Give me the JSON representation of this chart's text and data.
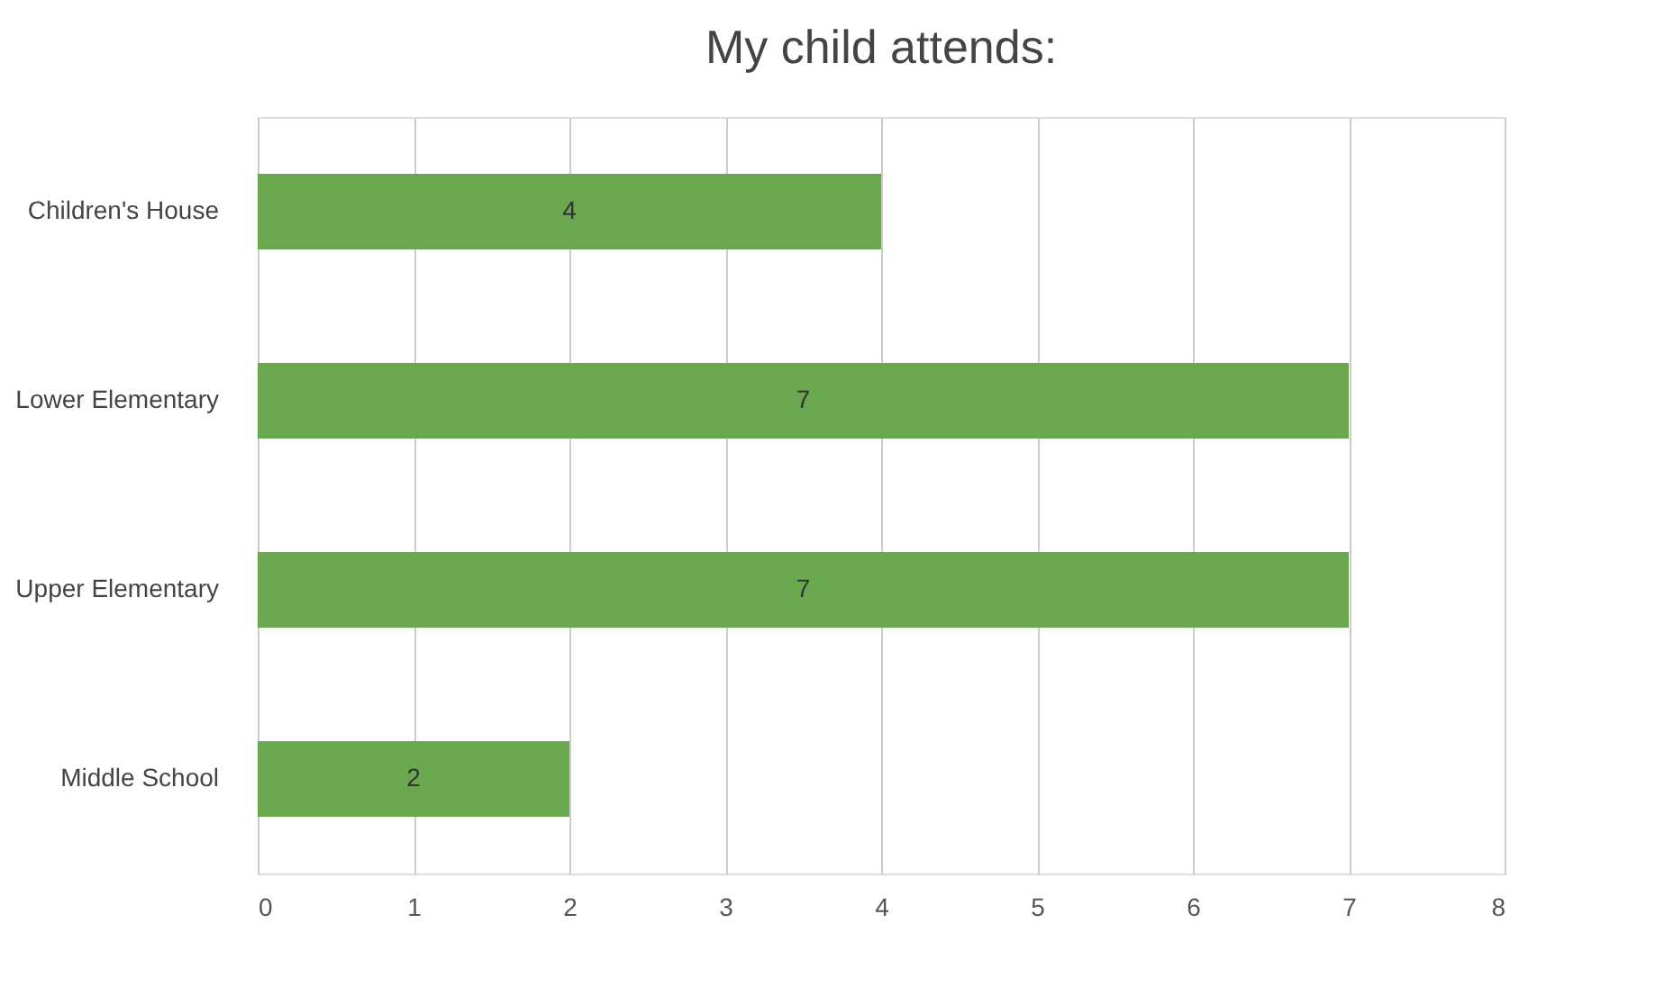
{
  "chart_data": {
    "type": "bar",
    "orientation": "horizontal",
    "title": "My child attends:",
    "categories": [
      "Children's House",
      "Lower Elementary",
      "Upper Elementary",
      "Middle School"
    ],
    "values": [
      4,
      7,
      7,
      2
    ],
    "color": "#6aa84f",
    "xlim": [
      0,
      8
    ],
    "xticks": [
      0,
      1,
      2,
      3,
      4,
      5,
      6,
      7,
      8
    ],
    "grid": "x",
    "data_labels": true
  }
}
